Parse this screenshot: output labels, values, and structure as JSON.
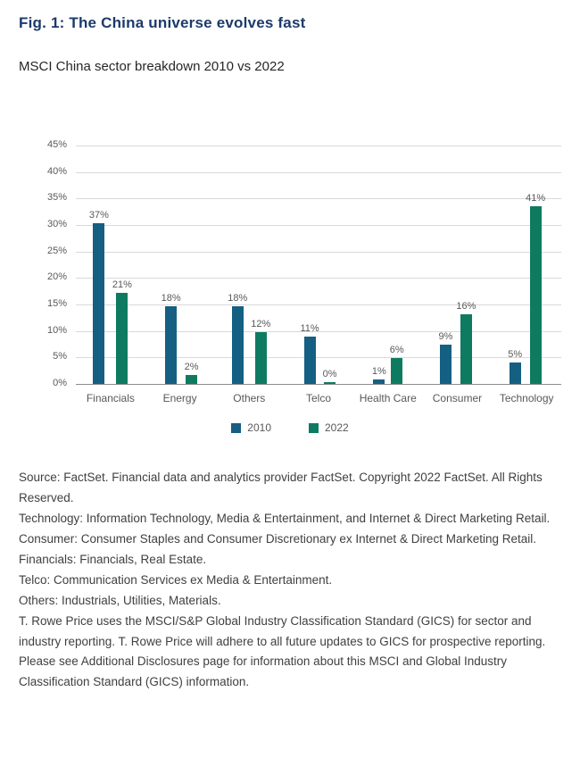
{
  "page": {
    "title": "Fig. 1: The China universe evolves fast",
    "subtitle": "MSCI China sector breakdown 2010 vs 2022"
  },
  "colors": {
    "title_navy": "#1c3a6b",
    "series_2010": "#155f83",
    "series_2022": "#0e7b60",
    "gridline": "#d9d9d9",
    "axis_text": "#595959"
  },
  "chart_data": {
    "type": "bar",
    "title": "MSCI China sector breakdown 2010 vs 2022",
    "categories": [
      "Financials",
      "Energy",
      "Others",
      "Telco",
      "Health Care",
      "Consumer",
      "Technology"
    ],
    "series": [
      {
        "name": "2010",
        "color": "#155f83",
        "values": [
          37,
          18,
          18,
          11,
          1,
          9,
          5
        ]
      },
      {
        "name": "2022",
        "color": "#0e7b60",
        "values": [
          21,
          2,
          12,
          0,
          6,
          16,
          41
        ]
      }
    ],
    "value_suffix": "%",
    "xlabel": "",
    "ylabel": "",
    "ylim": [
      0,
      45
    ],
    "ytick_step": 5,
    "ytick_labels": [
      "45%",
      "40%",
      "35%",
      "30%",
      "25%",
      "20%",
      "15%",
      "10%",
      "5%",
      "0%"
    ],
    "grid": true,
    "legend_position": "bottom"
  },
  "footnotes": [
    "Source: FactSet. Financial data and analytics provider FactSet. Copyright 2022 FactSet. All Rights Reserved.",
    "Technology: Information Technology, Media & Entertainment, and Internet & Direct Marketing Retail.",
    "Consumer: Consumer Staples and Consumer Discretionary ex Internet & Direct Marketing Retail.",
    "Financials: Financials, Real Estate.",
    "Telco: Communication Services ex Media & Entertainment.",
    "Others: Industrials, Utilities, Materials.",
    "T. Rowe Price uses the MSCI/S&P Global Industry Classification Standard (GICS) for sector and industry reporting. T. Rowe Price will adhere to all future updates to GICS for prospective reporting.",
    "Please see Additional Disclosures page for information about this MSCI and Global Industry Classification Standard (GICS) information."
  ]
}
